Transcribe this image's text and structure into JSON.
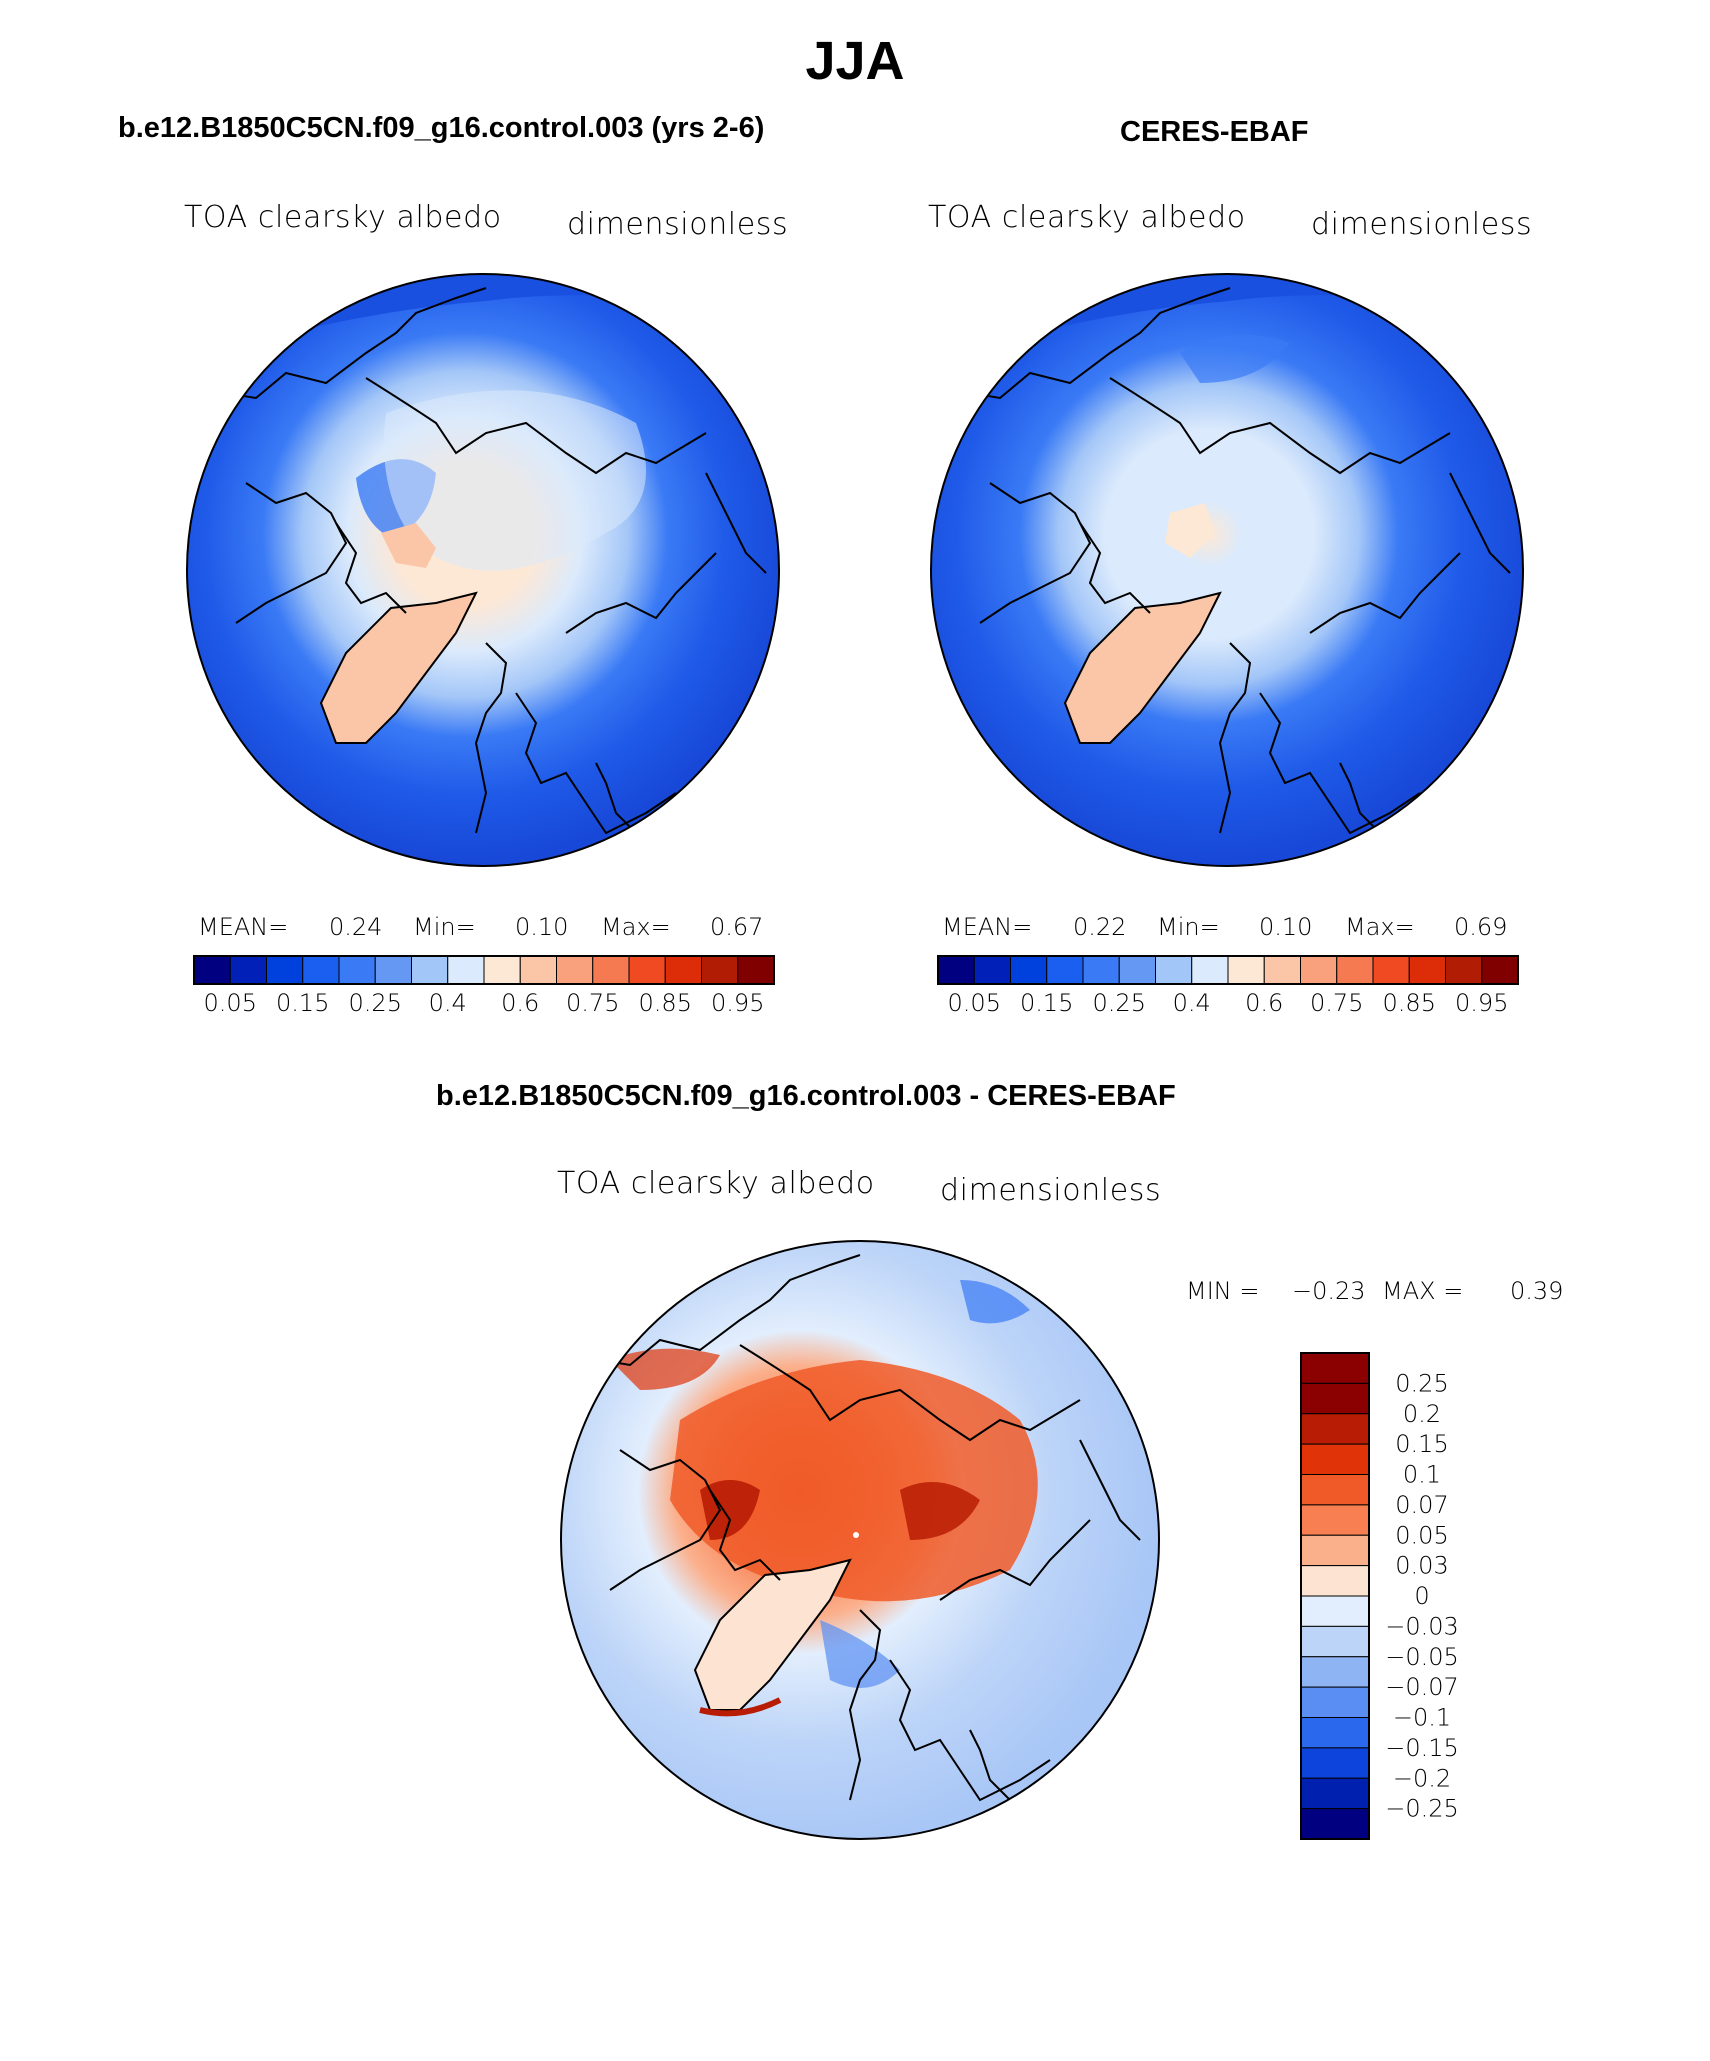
{
  "page": {
    "title": "JJA"
  },
  "panels": [
    {
      "heading": "b.e12.B1850C5CN.f09_g16.control.003 (yrs 2-6)",
      "variable": "TOA clearsky albedo",
      "units": "dimensionless",
      "stats": {
        "mean_label": "MEAN=",
        "mean": "0.24",
        "min_label": "Min=",
        "min": "0.10",
        "max_label": "Max=",
        "max": "0.67"
      }
    },
    {
      "heading": "CERES-EBAF",
      "variable": "TOA clearsky albedo",
      "units": "dimensionless",
      "stats": {
        "mean_label": "MEAN=",
        "mean": "0.22",
        "min_label": "Min=",
        "min": "0.10",
        "max_label": "Max=",
        "max": "0.69"
      }
    },
    {
      "heading": "b.e12.B1850C5CN.f09_g16.control.003 - CERES-EBAF",
      "variable": "TOA clearsky albedo",
      "units": "dimensionless",
      "stats": {
        "min_label": "MIN =",
        "min": "−0.23",
        "max_label": "MAX =",
        "max": "0.39"
      }
    }
  ],
  "colorbars": {
    "abs": {
      "colors": [
        "#000080",
        "#0020b8",
        "#0040dd",
        "#1a5ff0",
        "#3a7af5",
        "#6598f2",
        "#a3c6f8",
        "#dbeafc",
        "#fde8d6",
        "#fbc6a8",
        "#f9a07c",
        "#f57a52",
        "#f04a22",
        "#dc2c08",
        "#b01c04",
        "#800000"
      ],
      "tick_labels": [
        "0.05",
        "0.15",
        "0.25",
        "0.4",
        "0.6",
        "0.75",
        "0.85",
        "0.95"
      ]
    },
    "diff": {
      "colors": [
        "#8b0000",
        "#b81c04",
        "#e03408",
        "#f05a28",
        "#f77f52",
        "#fbb08c",
        "#fde4d2",
        "#e2eefd",
        "#bcd4f8",
        "#8fb4f4",
        "#5a8ef2",
        "#2a68ee",
        "#0c44dc",
        "#0020b0",
        "#000080"
      ],
      "tick_labels": [
        "0.25",
        "0.2",
        "0.15",
        "0.1",
        "0.07",
        "0.05",
        "0.03",
        "0",
        "−0.03",
        "−0.05",
        "−0.07",
        "−0.1",
        "−0.15",
        "−0.2",
        "−0.25"
      ]
    }
  },
  "chart_data": [
    {
      "type": "heatmap",
      "title": "b.e12.B1850C5CN.f09_g16.control.003 (yrs 2-6)",
      "subtitle_left": "TOA clearsky albedo",
      "subtitle_right": "dimensionless",
      "projection": "polar stereographic (Northern Hemisphere)",
      "summary": {
        "mean": 0.24,
        "min": 0.1,
        "max": 0.67
      },
      "contour_levels": [
        0.05,
        0.1,
        0.15,
        0.2,
        0.25,
        0.3,
        0.4,
        0.5,
        0.6,
        0.7,
        0.75,
        0.8,
        0.85,
        0.9,
        0.95
      ],
      "labeled_levels": [
        0.05,
        0.15,
        0.25,
        0.4,
        0.6,
        0.75,
        0.85,
        0.95
      ]
    },
    {
      "type": "heatmap",
      "title": "CERES-EBAF",
      "subtitle_left": "TOA clearsky albedo",
      "subtitle_right": "dimensionless",
      "projection": "polar stereographic (Northern Hemisphere)",
      "summary": {
        "mean": 0.22,
        "min": 0.1,
        "max": 0.69
      },
      "contour_levels": [
        0.05,
        0.1,
        0.15,
        0.2,
        0.25,
        0.3,
        0.4,
        0.5,
        0.6,
        0.7,
        0.75,
        0.8,
        0.85,
        0.9,
        0.95
      ],
      "labeled_levels": [
        0.05,
        0.15,
        0.25,
        0.4,
        0.6,
        0.75,
        0.85,
        0.95
      ]
    },
    {
      "type": "heatmap",
      "title": "b.e12.B1850C5CN.f09_g16.control.003 - CERES-EBAF",
      "subtitle_left": "TOA clearsky albedo",
      "subtitle_right": "dimensionless",
      "projection": "polar stereographic (Northern Hemisphere)",
      "summary": {
        "min": -0.23,
        "max": 0.39
      },
      "contour_levels": [
        0.25,
        0.2,
        0.15,
        0.1,
        0.07,
        0.05,
        0.03,
        0,
        -0.03,
        -0.05,
        -0.07,
        -0.1,
        -0.15,
        -0.2,
        -0.25
      ]
    }
  ]
}
